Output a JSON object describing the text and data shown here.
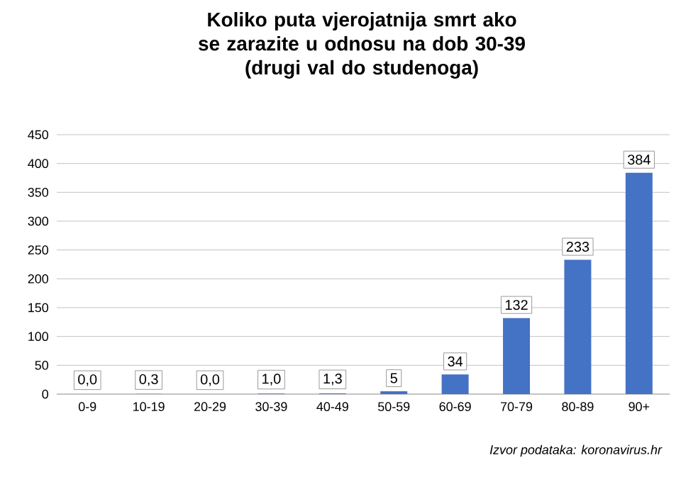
{
  "chart_data": {
    "type": "bar",
    "title": "Koliko puta vjerojatnija smrt ako se zarazite u odnosu na dob 30-39",
    "subtitle": "(drugi val do studenoga)",
    "categories": [
      "0-9",
      "10-19",
      "20-29",
      "30-39",
      "40-49",
      "50-59",
      "60-69",
      "70-79",
      "80-89",
      "90+"
    ],
    "values": [
      0.0,
      0.3,
      0.0,
      1.0,
      1.3,
      5,
      34,
      132,
      233,
      384
    ],
    "value_labels": [
      "0,0",
      "0,3",
      "0,0",
      "1,0",
      "1,3",
      "5",
      "34",
      "132",
      "233",
      "384"
    ],
    "color": "#4472c4",
    "ylim": [
      0,
      450
    ],
    "yticks": [
      0,
      50,
      100,
      150,
      200,
      250,
      300,
      350,
      400,
      450
    ],
    "grid": "y",
    "annotations": [
      "Izvor podataka: koronavirus.hr"
    ]
  }
}
